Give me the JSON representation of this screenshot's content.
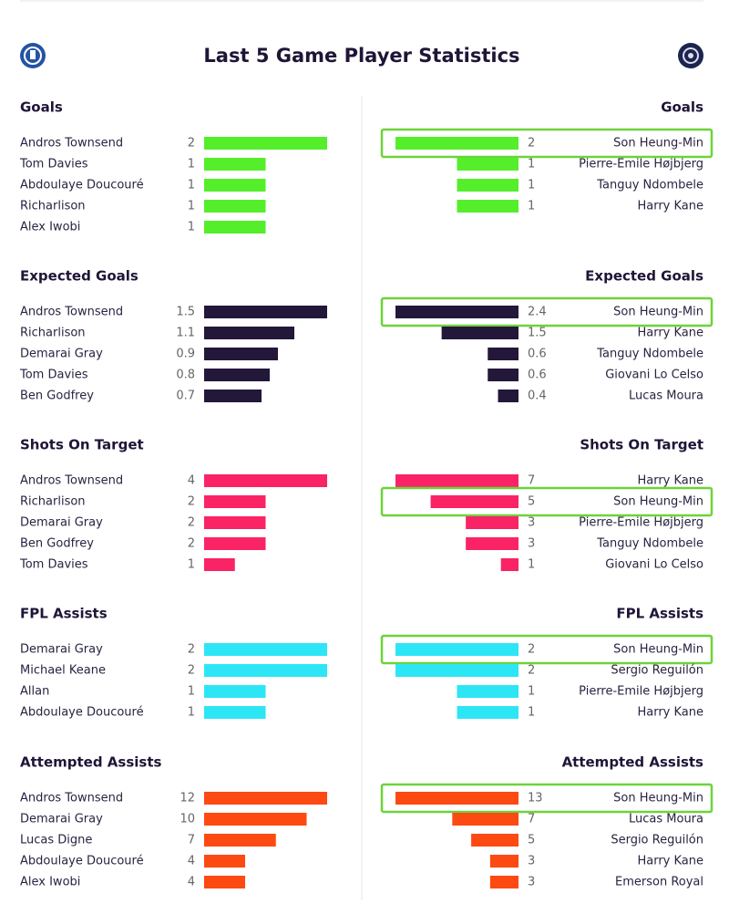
{
  "title": "Last 5 Game Player Statistics",
  "sections": [
    {
      "title": "Goals",
      "color": "#55ee2b",
      "left": [
        {
          "name": "Andros Townsend",
          "value": 2
        },
        {
          "name": "Tom Davies",
          "value": 1
        },
        {
          "name": "Abdoulaye Doucouré",
          "value": 1
        },
        {
          "name": "Richarlison",
          "value": 1
        },
        {
          "name": "Alex Iwobi",
          "value": 1
        }
      ],
      "right": [
        {
          "name": "Son Heung-Min",
          "value": 2,
          "highlight": true
        },
        {
          "name": "Pierre-Emile Højbjerg",
          "value": 1
        },
        {
          "name": "Tanguy Ndombele",
          "value": 1
        },
        {
          "name": "Harry Kane",
          "value": 1
        }
      ]
    },
    {
      "title": "Expected Goals",
      "color": "#23173a",
      "left": [
        {
          "name": "Andros Townsend",
          "value": 1.5
        },
        {
          "name": "Richarlison",
          "value": 1.1
        },
        {
          "name": "Demarai Gray",
          "value": 0.9
        },
        {
          "name": "Tom Davies",
          "value": 0.8
        },
        {
          "name": "Ben Godfrey",
          "value": 0.7
        }
      ],
      "right": [
        {
          "name": "Son Heung-Min",
          "value": 2.4,
          "highlight": true
        },
        {
          "name": "Harry Kane",
          "value": 1.5
        },
        {
          "name": "Tanguy Ndombele",
          "value": 0.6
        },
        {
          "name": "Giovani Lo Celso",
          "value": 0.6
        },
        {
          "name": "Lucas Moura",
          "value": 0.4
        }
      ]
    },
    {
      "title": "Shots On Target",
      "color": "#fa2365",
      "left": [
        {
          "name": "Andros Townsend",
          "value": 4
        },
        {
          "name": "Richarlison",
          "value": 2
        },
        {
          "name": "Demarai Gray",
          "value": 2
        },
        {
          "name": "Ben Godfrey",
          "value": 2
        },
        {
          "name": "Tom Davies",
          "value": 1
        }
      ],
      "right": [
        {
          "name": "Harry Kane",
          "value": 7
        },
        {
          "name": "Son Heung-Min",
          "value": 5,
          "highlight": true
        },
        {
          "name": "Pierre-Emile Højbjerg",
          "value": 3
        },
        {
          "name": "Tanguy Ndombele",
          "value": 3
        },
        {
          "name": "Giovani Lo Celso",
          "value": 1
        }
      ]
    },
    {
      "title": "FPL Assists",
      "color": "#2de6f5",
      "left": [
        {
          "name": "Demarai Gray",
          "value": 2
        },
        {
          "name": "Michael Keane",
          "value": 2
        },
        {
          "name": "Allan",
          "value": 1
        },
        {
          "name": "Abdoulaye Doucouré",
          "value": 1
        }
      ],
      "right": [
        {
          "name": "Son Heung-Min",
          "value": 2,
          "highlight": true
        },
        {
          "name": "Sergio Reguilón",
          "value": 2
        },
        {
          "name": "Pierre-Emile Højbjerg",
          "value": 1
        },
        {
          "name": "Harry Kane",
          "value": 1
        }
      ]
    },
    {
      "title": "Attempted Assists",
      "color": "#fc4a12",
      "left": [
        {
          "name": "Andros Townsend",
          "value": 12
        },
        {
          "name": "Demarai Gray",
          "value": 10
        },
        {
          "name": "Lucas Digne",
          "value": 7
        },
        {
          "name": "Abdoulaye Doucouré",
          "value": 4
        },
        {
          "name": "Alex Iwobi",
          "value": 4
        }
      ],
      "right": [
        {
          "name": "Son Heung-Min",
          "value": 13,
          "highlight": true
        },
        {
          "name": "Lucas Moura",
          "value": 7
        },
        {
          "name": "Sergio Reguilón",
          "value": 5
        },
        {
          "name": "Harry Kane",
          "value": 3
        },
        {
          "name": "Emerson Royal",
          "value": 3
        }
      ]
    }
  ]
}
